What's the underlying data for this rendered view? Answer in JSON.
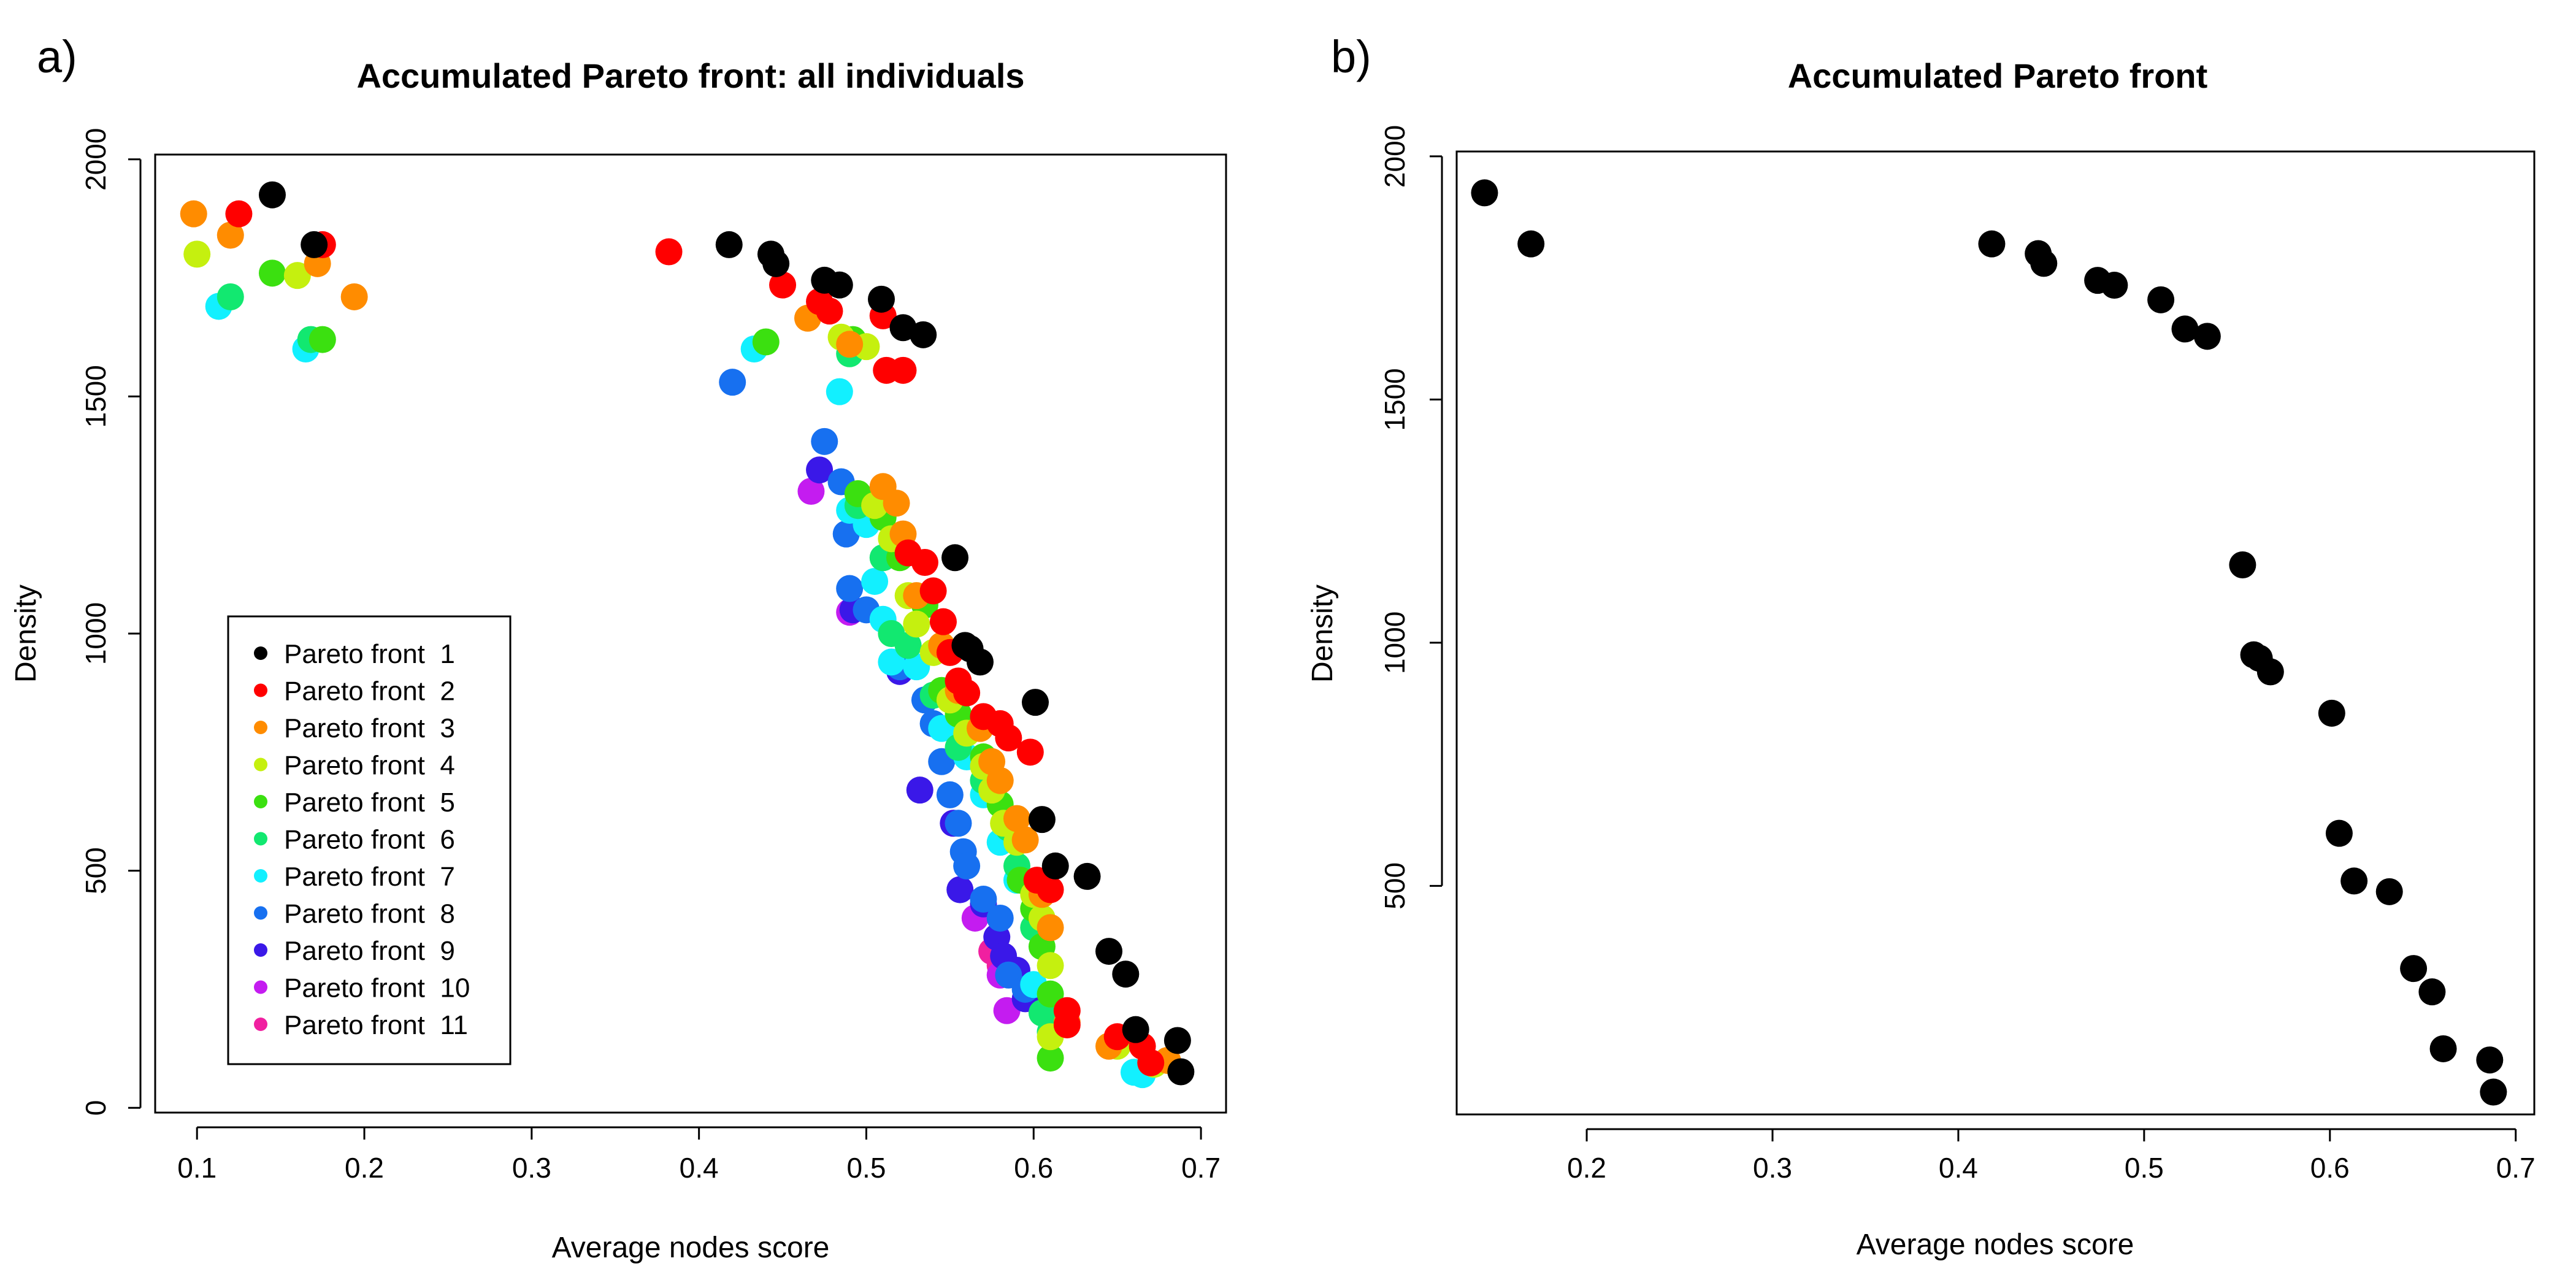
{
  "panels": [
    {
      "label": "a)"
    },
    {
      "label": "b)"
    }
  ],
  "colors": {
    "front_1": "#000000",
    "front_2": "#ff0000",
    "front_3": "#ff8c00",
    "front_4": "#c5f00f",
    "front_5": "#3be010",
    "front_6": "#12e870",
    "front_7": "#12f0ff",
    "front_8": "#1770f0",
    "front_9": "#3a18e8",
    "front_10": "#c41cf0",
    "front_11": "#f020a0"
  },
  "chart_data": [
    {
      "type": "scatter",
      "title": "Accumulated Pareto front: all individuals",
      "xlabel": "Average nodes score",
      "ylabel": "Density",
      "xlim": [
        0.075,
        0.715
      ],
      "ylim": [
        -10,
        2010
      ],
      "xticks": [
        "0.1",
        "0.2",
        "0.3",
        "0.4",
        "0.5",
        "0.6",
        "0.7"
      ],
      "yticks": [
        "0",
        "500",
        "1000",
        "1500",
        "2000"
      ],
      "grid": false,
      "legend_position": "bottom-left",
      "series": [
        {
          "name": "Pareto front  1",
          "color": "#000000",
          "points": [
            [
              0.145,
              1925
            ],
            [
              0.17,
              1820
            ],
            [
              0.418,
              1820
            ],
            [
              0.443,
              1800
            ],
            [
              0.446,
              1780
            ],
            [
              0.475,
              1745
            ],
            [
              0.484,
              1735
            ],
            [
              0.509,
              1705
            ],
            [
              0.522,
              1645
            ],
            [
              0.534,
              1630
            ],
            [
              0.553,
              1160
            ],
            [
              0.559,
              975
            ],
            [
              0.562,
              968
            ],
            [
              0.568,
              940
            ],
            [
              0.601,
              855
            ],
            [
              0.605,
              608
            ],
            [
              0.613,
              510
            ],
            [
              0.632,
              488
            ],
            [
              0.645,
              330
            ],
            [
              0.655,
              282
            ],
            [
              0.661,
              165
            ],
            [
              0.686,
              142
            ],
            [
              0.688,
              76
            ]
          ]
        },
        {
          "name": "Pareto front  2",
          "color": "#ff0000",
          "points": [
            [
              0.125,
              1885
            ],
            [
              0.175,
              1820
            ],
            [
              0.382,
              1805
            ],
            [
              0.45,
              1735
            ],
            [
              0.472,
              1700
            ],
            [
              0.478,
              1680
            ],
            [
              0.51,
              1670
            ],
            [
              0.512,
              1555
            ],
            [
              0.522,
              1555
            ],
            [
              0.525,
              1170
            ],
            [
              0.535,
              1150
            ],
            [
              0.54,
              1090
            ],
            [
              0.546,
              1025
            ],
            [
              0.55,
              960
            ],
            [
              0.555,
              900
            ],
            [
              0.56,
              875
            ],
            [
              0.57,
              825
            ],
            [
              0.58,
              810
            ],
            [
              0.585,
              780
            ],
            [
              0.598,
              750
            ],
            [
              0.602,
              480
            ],
            [
              0.61,
              460
            ],
            [
              0.62,
              205
            ],
            [
              0.62,
              175
            ],
            [
              0.65,
              150
            ],
            [
              0.665,
              130
            ],
            [
              0.67,
              95
            ]
          ]
        },
        {
          "name": "Pareto front  3",
          "color": "#ff8c00",
          "points": [
            [
              0.098,
              1885
            ],
            [
              0.12,
              1840
            ],
            [
              0.172,
              1780
            ],
            [
              0.194,
              1710
            ],
            [
              0.465,
              1665
            ],
            [
              0.49,
              1610
            ],
            [
              0.51,
              1310
            ],
            [
              0.518,
              1275
            ],
            [
              0.522,
              1210
            ],
            [
              0.53,
              1080
            ],
            [
              0.545,
              975
            ],
            [
              0.555,
              880
            ],
            [
              0.568,
              800
            ],
            [
              0.575,
              730
            ],
            [
              0.58,
              690
            ],
            [
              0.59,
              610
            ],
            [
              0.595,
              565
            ],
            [
              0.605,
              450
            ],
            [
              0.61,
              380
            ],
            [
              0.62,
              180
            ],
            [
              0.645,
              130
            ],
            [
              0.68,
              100
            ]
          ]
        },
        {
          "name": "Pareto front  4",
          "color": "#c5f00f",
          "points": [
            [
              0.1,
              1800
            ],
            [
              0.16,
              1755
            ],
            [
              0.485,
              1625
            ],
            [
              0.5,
              1605
            ],
            [
              0.505,
              1270
            ],
            [
              0.515,
              1200
            ],
            [
              0.525,
              1080
            ],
            [
              0.53,
              1020
            ],
            [
              0.54,
              960
            ],
            [
              0.55,
              860
            ],
            [
              0.56,
              790
            ],
            [
              0.57,
              720
            ],
            [
              0.575,
              670
            ],
            [
              0.582,
              600
            ],
            [
              0.59,
              560
            ],
            [
              0.6,
              450
            ],
            [
              0.605,
              400
            ],
            [
              0.61,
              300
            ],
            [
              0.61,
              150
            ],
            [
              0.65,
              130
            ],
            [
              0.672,
              92
            ]
          ]
        },
        {
          "name": "Pareto front  5",
          "color": "#3be010",
          "points": [
            [
              0.145,
              1760
            ],
            [
              0.175,
              1620
            ],
            [
              0.44,
              1615
            ],
            [
              0.492,
              1620
            ],
            [
              0.495,
              1295
            ],
            [
              0.51,
              1245
            ],
            [
              0.52,
              1160
            ],
            [
              0.535,
              1060
            ],
            [
              0.545,
              880
            ],
            [
              0.555,
              830
            ],
            [
              0.57,
              740
            ],
            [
              0.58,
              640
            ],
            [
              0.592,
              480
            ],
            [
              0.6,
              420
            ],
            [
              0.605,
              340
            ],
            [
              0.61,
              240
            ],
            [
              0.61,
              105
            ]
          ]
        },
        {
          "name": "Pareto front  6",
          "color": "#12e870",
          "points": [
            [
              0.12,
              1710
            ],
            [
              0.168,
              1620
            ],
            [
              0.49,
              1590
            ],
            [
              0.495,
              1270
            ],
            [
              0.51,
              1160
            ],
            [
              0.515,
              1000
            ],
            [
              0.525,
              975
            ],
            [
              0.54,
              870
            ],
            [
              0.555,
              760
            ],
            [
              0.57,
              690
            ],
            [
              0.585,
              590
            ],
            [
              0.59,
              510
            ],
            [
              0.6,
              380
            ],
            [
              0.605,
              200
            ],
            [
              0.61,
              160
            ]
          ]
        },
        {
          "name": "Pareto front  7",
          "color": "#12f0ff",
          "points": [
            [
              0.113,
              1690
            ],
            [
              0.165,
              1600
            ],
            [
              0.433,
              1600
            ],
            [
              0.484,
              1510
            ],
            [
              0.49,
              1260
            ],
            [
              0.5,
              1230
            ],
            [
              0.505,
              1110
            ],
            [
              0.51,
              1030
            ],
            [
              0.515,
              940
            ],
            [
              0.53,
              930
            ],
            [
              0.545,
              800
            ],
            [
              0.56,
              740
            ],
            [
              0.57,
              660
            ],
            [
              0.58,
              560
            ],
            [
              0.59,
              480
            ],
            [
              0.6,
              260
            ],
            [
              0.61,
              160
            ],
            [
              0.665,
              70
            ],
            [
              0.66,
              75
            ]
          ]
        },
        {
          "name": "Pareto front  8",
          "color": "#1770f0",
          "points": [
            [
              0.42,
              1530
            ],
            [
              0.475,
              1405
            ],
            [
              0.485,
              1320
            ],
            [
              0.488,
              1210
            ],
            [
              0.49,
              1095
            ],
            [
              0.5,
              1050
            ],
            [
              0.52,
              930
            ],
            [
              0.535,
              860
            ],
            [
              0.54,
              810
            ],
            [
              0.545,
              730
            ],
            [
              0.55,
              660
            ],
            [
              0.555,
              600
            ],
            [
              0.558,
              540
            ],
            [
              0.56,
              510
            ],
            [
              0.57,
              440
            ],
            [
              0.58,
              400
            ],
            [
              0.585,
              280
            ],
            [
              0.595,
              250
            ]
          ]
        },
        {
          "name": "Pareto front  9",
          "color": "#3a18e8",
          "points": [
            [
              0.472,
              1345
            ],
            [
              0.492,
              1050
            ],
            [
              0.52,
              920
            ],
            [
              0.532,
              670
            ],
            [
              0.552,
              600
            ],
            [
              0.556,
              460
            ],
            [
              0.57,
              430
            ],
            [
              0.578,
              360
            ],
            [
              0.582,
              320
            ],
            [
              0.59,
              290
            ],
            [
              0.595,
              230
            ]
          ]
        },
        {
          "name": "Pareto front  10",
          "color": "#c41cf0",
          "points": [
            [
              0.467,
              1300
            ],
            [
              0.49,
              1045
            ],
            [
              0.565,
              400
            ],
            [
              0.58,
              280
            ],
            [
              0.584,
              205
            ]
          ]
        },
        {
          "name": "Pareto front  11",
          "color": "#f020a0",
          "points": [
            [
              0.575,
              330
            ],
            [
              0.58,
              300
            ]
          ]
        }
      ]
    },
    {
      "type": "scatter",
      "title": "Accumulated Pareto front",
      "xlabel": "Average nodes score",
      "ylabel": "Density",
      "xlim": [
        0.13,
        0.71
      ],
      "ylim": [
        30,
        2010
      ],
      "xticks": [
        "0.2",
        "0.3",
        "0.4",
        "0.5",
        "0.6",
        "0.7"
      ],
      "yticks": [
        "500",
        "1000",
        "1500",
        "2000"
      ],
      "grid": false,
      "series": [
        {
          "color": "#000000",
          "points": [
            [
              0.145,
              1925
            ],
            [
              0.17,
              1820
            ],
            [
              0.418,
              1820
            ],
            [
              0.443,
              1800
            ],
            [
              0.446,
              1780
            ],
            [
              0.475,
              1745
            ],
            [
              0.484,
              1735
            ],
            [
              0.509,
              1705
            ],
            [
              0.522,
              1645
            ],
            [
              0.534,
              1630
            ],
            [
              0.553,
              1160
            ],
            [
              0.559,
              975
            ],
            [
              0.562,
              968
            ],
            [
              0.568,
              940
            ],
            [
              0.601,
              855
            ],
            [
              0.605,
              608
            ],
            [
              0.613,
              510
            ],
            [
              0.632,
              488
            ],
            [
              0.645,
              330
            ],
            [
              0.655,
              282
            ],
            [
              0.661,
              165
            ],
            [
              0.686,
              142
            ],
            [
              0.688,
              76
            ]
          ]
        }
      ]
    }
  ]
}
